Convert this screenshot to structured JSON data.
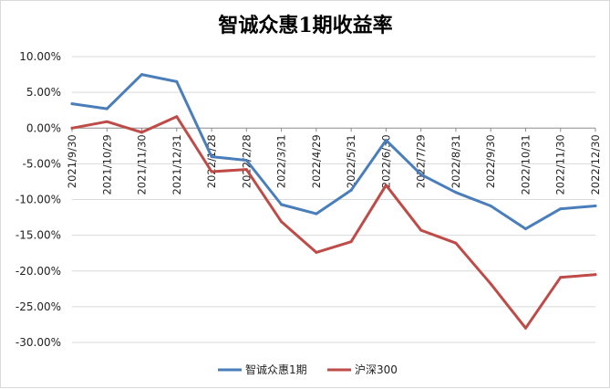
{
  "chart_data": {
    "type": "line",
    "title": "智诚众惠1期收益率",
    "xlabel": "",
    "ylabel": "",
    "categories": [
      "2021/9/30",
      "2021/10/29",
      "2021/11/30",
      "2021/12/31",
      "2022/1/28",
      "2022/2/28",
      "2022/3/31",
      "2022/4/29",
      "2022/5/31",
      "2022/6/30",
      "2022/7/29",
      "2022/8/31",
      "2022/9/30",
      "2022/10/31",
      "2022/11/30",
      "2022/12/30"
    ],
    "ylim": [
      -0.3,
      0.1
    ],
    "yticks": [
      0.1,
      0.05,
      0.0,
      -0.05,
      -0.1,
      -0.15,
      -0.2,
      -0.25,
      -0.3
    ],
    "ytick_labels": [
      "10.00%",
      "5.00%",
      "0.00%",
      "-5.00%",
      "-10.00%",
      "-15.00%",
      "-20.00%",
      "-25.00%",
      "-30.00%"
    ],
    "grid": true,
    "legend_position": "bottom",
    "series": [
      {
        "name": "智诚众惠1期",
        "color": "#4a7ebb",
        "values": [
          0.034,
          0.027,
          0.075,
          0.065,
          -0.04,
          -0.045,
          -0.107,
          -0.12,
          -0.087,
          -0.017,
          -0.065,
          -0.09,
          -0.109,
          -0.141,
          -0.113,
          -0.109
        ]
      },
      {
        "name": "沪深300",
        "color": "#be4b48",
        "values": [
          0.0,
          0.009,
          -0.006,
          0.016,
          -0.061,
          -0.058,
          -0.131,
          -0.174,
          -0.159,
          -0.08,
          -0.143,
          -0.161,
          -0.218,
          -0.28,
          -0.209,
          -0.205
        ]
      }
    ]
  }
}
